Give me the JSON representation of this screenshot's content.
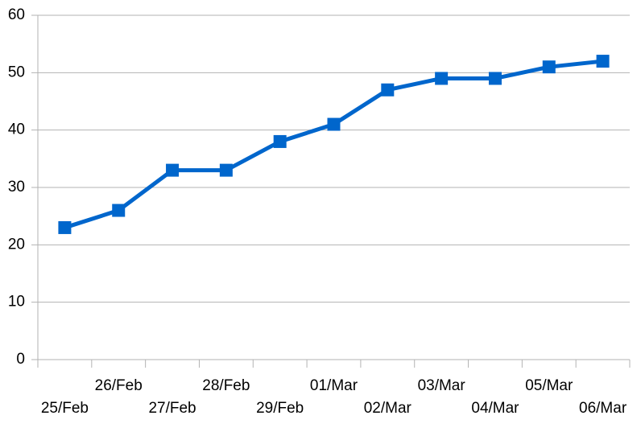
{
  "chart_data": {
    "type": "line",
    "categories": [
      "25/Feb",
      "26/Feb",
      "27/Feb",
      "28/Feb",
      "29/Feb",
      "01/Mar",
      "02/Mar",
      "03/Mar",
      "04/Mar",
      "05/Mar",
      "06/Mar"
    ],
    "series": [
      {
        "color": "#0066cc",
        "values": [
          23,
          26,
          33,
          33,
          38,
          41,
          47,
          49,
          49,
          51,
          52
        ]
      }
    ],
    "ylim": [
      0,
      60
    ],
    "yticks": [
      0,
      10,
      20,
      30,
      40,
      50,
      60
    ],
    "grid": true
  }
}
